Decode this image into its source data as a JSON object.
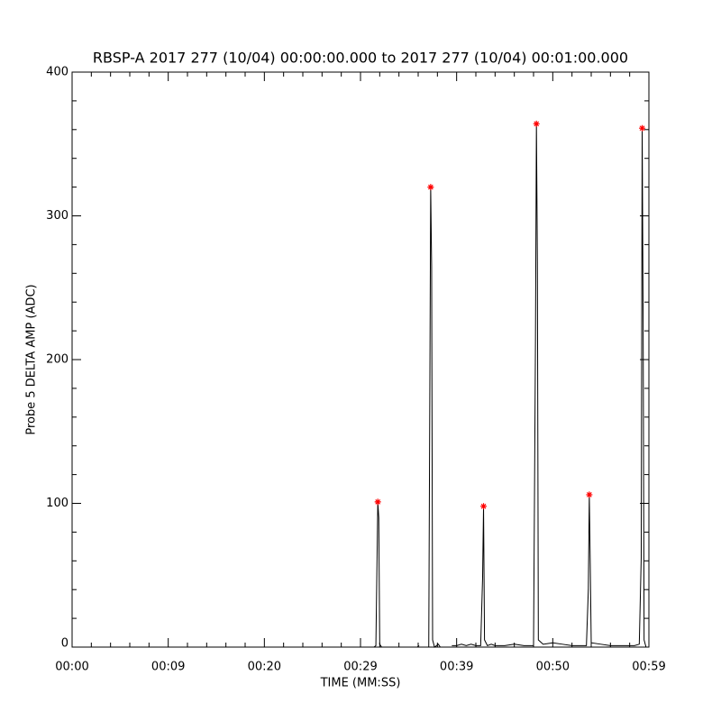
{
  "chart_data": {
    "type": "line",
    "title": "RBSP-A 2017 277 (10/04) 00:00:00.000 to 2017 277 (10/04) 00:01:00.000",
    "x_label": "TIME (MM:SS)",
    "y_label": "Probe 5 DELTA AMP (ADC)",
    "xlim": [
      0,
      60
    ],
    "ylim": [
      0,
      400
    ],
    "xticks": [
      {
        "value": 0,
        "label": "00:00"
      },
      {
        "value": 10,
        "label": "00:09"
      },
      {
        "value": 20,
        "label": "00:20"
      },
      {
        "value": 30,
        "label": "00:29"
      },
      {
        "value": 40,
        "label": "00:39"
      },
      {
        "value": 50,
        "label": "00:50"
      },
      {
        "value": 60,
        "label": "00:59"
      }
    ],
    "yticks": [
      0,
      100,
      200,
      300,
      400
    ],
    "series": [
      {
        "color": "#000000",
        "x": [
          31.4,
          31.6,
          31.8,
          31.9,
          32.0,
          32.2,
          33.0,
          null,
          35.9,
          36.1,
          null,
          36.8,
          37.1,
          37.3,
          37.4,
          37.5,
          37.7,
          38.1,
          38.3,
          38.6,
          null,
          39.5,
          40.0,
          40.5,
          41.0,
          41.5,
          42.0,
          42.5,
          42.7,
          42.8,
          42.9,
          43.2,
          43.6,
          44.0,
          45.0,
          46.0,
          47.0,
          48.0,
          48.2,
          48.3,
          48.4,
          48.5,
          49.0,
          50.0,
          51.0,
          52.0,
          53.5,
          53.7,
          53.8,
          53.9,
          54.0,
          55.0,
          56.0,
          57.0,
          58.5,
          59.0,
          59.2,
          59.3,
          59.4,
          59.5,
          59.7
        ],
        "values": [
          0,
          1,
          101,
          90,
          2,
          0,
          0,
          null,
          0,
          1,
          null,
          0,
          0,
          320,
          265,
          5,
          0,
          2,
          0,
          0,
          null,
          1,
          1,
          2,
          1,
          2,
          1,
          1,
          48,
          98,
          5,
          1,
          2,
          1,
          1,
          2,
          1,
          1,
          212,
          364,
          268,
          5,
          2,
          3,
          2,
          1,
          1,
          40,
          106,
          58,
          3,
          2,
          1,
          1,
          1,
          2,
          62,
          361,
          225,
          5,
          0
        ]
      },
      {
        "color": "#ff0000",
        "marker": "asterisk",
        "x": [
          31.8,
          37.3,
          42.8,
          48.3,
          53.8,
          59.3
        ],
        "values": [
          101,
          320,
          98,
          364,
          106,
          361
        ]
      }
    ]
  }
}
